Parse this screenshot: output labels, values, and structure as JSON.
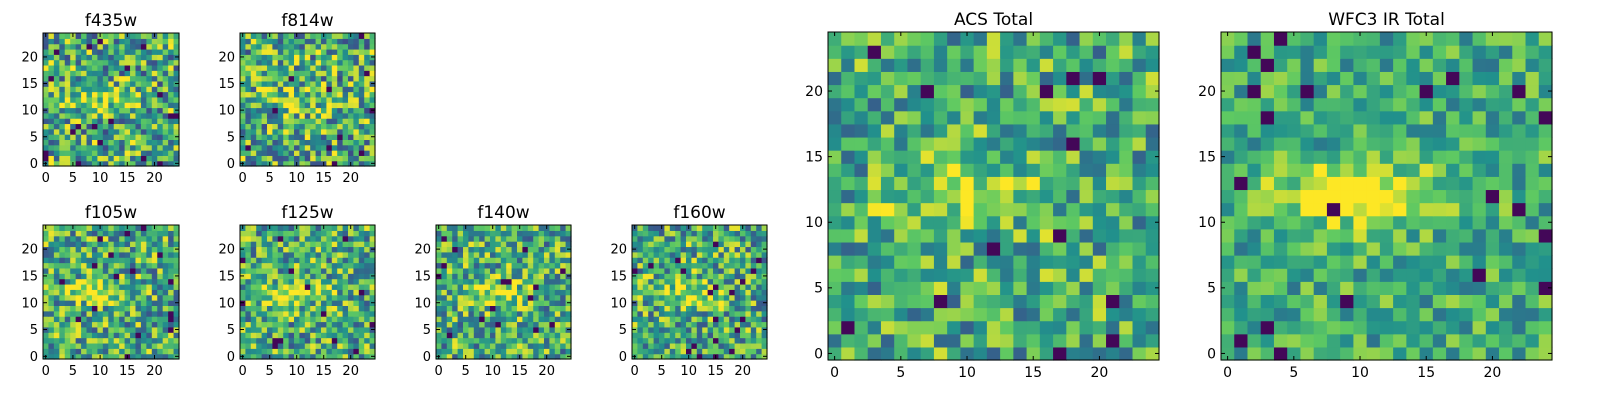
{
  "chart_data": [
    {
      "type": "heatmap",
      "title": "f435w",
      "xlabel": "",
      "ylabel": "",
      "x_ticks": [
        "0",
        "5",
        "10",
        "15",
        "20"
      ],
      "y_ticks": [
        "0",
        "5",
        "10",
        "15",
        "20"
      ],
      "grid": false,
      "colormap": "viridis",
      "size": 25,
      "seed": 101,
      "noise": 0.5,
      "blob": 0.3
    },
    {
      "type": "heatmap",
      "title": "f814w",
      "xlabel": "",
      "ylabel": "",
      "x_ticks": [
        "0",
        "5",
        "10",
        "15",
        "20"
      ],
      "y_ticks": [
        "0",
        "5",
        "10",
        "15",
        "20"
      ],
      "grid": false,
      "colormap": "viridis",
      "size": 25,
      "seed": 202,
      "noise": 0.5,
      "blob": 0.2
    },
    {
      "type": "heatmap",
      "title": "f105w",
      "xlabel": "",
      "ylabel": "",
      "x_ticks": [
        "0",
        "5",
        "10",
        "15",
        "20"
      ],
      "y_ticks": [
        "0",
        "5",
        "10",
        "15",
        "20"
      ],
      "grid": false,
      "colormap": "viridis",
      "size": 25,
      "seed": 303,
      "noise": 0.45,
      "blob": 0.3
    },
    {
      "type": "heatmap",
      "title": "f125w",
      "xlabel": "",
      "ylabel": "",
      "x_ticks": [
        "0",
        "5",
        "10",
        "15",
        "20"
      ],
      "y_ticks": [
        "0",
        "5",
        "10",
        "15",
        "20"
      ],
      "grid": false,
      "colormap": "viridis",
      "size": 25,
      "seed": 404,
      "noise": 0.45,
      "blob": 0.3
    },
    {
      "type": "heatmap",
      "title": "f140w",
      "xlabel": "",
      "ylabel": "",
      "x_ticks": [
        "0",
        "5",
        "10",
        "15",
        "20"
      ],
      "y_ticks": [
        "0",
        "5",
        "10",
        "15",
        "20"
      ],
      "grid": false,
      "colormap": "viridis",
      "size": 25,
      "seed": 505,
      "noise": 0.45,
      "blob": 0.3
    },
    {
      "type": "heatmap",
      "title": "f160w",
      "xlabel": "",
      "ylabel": "",
      "x_ticks": [
        "0",
        "5",
        "10",
        "15",
        "20"
      ],
      "y_ticks": [
        "0",
        "5",
        "10",
        "15",
        "20"
      ],
      "grid": false,
      "colormap": "viridis",
      "size": 25,
      "seed": 606,
      "noise": 0.45,
      "blob": 0.35
    },
    {
      "type": "heatmap",
      "title": "ACS Total",
      "xlabel": "",
      "ylabel": "",
      "x_ticks": [
        "0",
        "5",
        "10",
        "15",
        "20"
      ],
      "y_ticks": [
        "0",
        "5",
        "10",
        "15",
        "20"
      ],
      "grid": false,
      "colormap": "viridis",
      "size": 25,
      "seed": 707,
      "noise": 0.4,
      "blob": 0.35
    },
    {
      "type": "heatmap",
      "title": "WFC3 IR Total",
      "xlabel": "",
      "ylabel": "",
      "x_ticks": [
        "0",
        "5",
        "10",
        "15",
        "20"
      ],
      "y_ticks": [
        "0",
        "5",
        "10",
        "15",
        "20"
      ],
      "grid": false,
      "colormap": "viridis",
      "size": 25,
      "seed": 808,
      "noise": 0.3,
      "blob": 0.5
    }
  ],
  "colors": {
    "viridis_stops": [
      "#440154",
      "#3b528b",
      "#21918c",
      "#5ec962",
      "#fde725"
    ]
  }
}
